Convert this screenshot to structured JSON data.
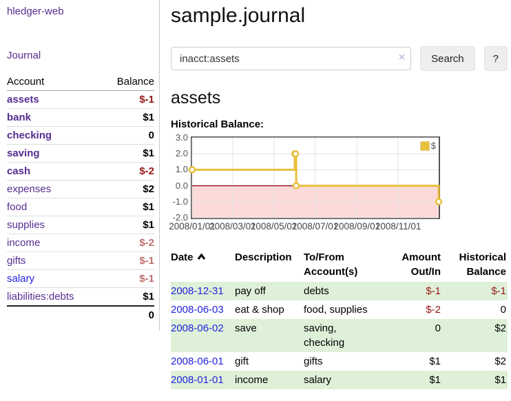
{
  "app": {
    "title": "hledger-web"
  },
  "sidebar": {
    "nav_journal": "Journal",
    "accounts": {
      "col_account": "Account",
      "col_balance": "Balance",
      "rows": [
        {
          "account": "assets",
          "balance": "$-1",
          "depth": 1,
          "bold": true,
          "negative": "strong"
        },
        {
          "account": "bank",
          "balance": "$1",
          "depth": 2,
          "bold": true,
          "negative": "none"
        },
        {
          "account": "checking",
          "balance": "0",
          "depth": 3,
          "bold": true,
          "negative": "none"
        },
        {
          "account": "saving",
          "balance": "$1",
          "depth": 3,
          "bold": true,
          "negative": "none"
        },
        {
          "account": "cash",
          "balance": "$-2",
          "depth": 2,
          "bold": true,
          "negative": "strong"
        },
        {
          "account": "expenses",
          "balance": "$2",
          "depth": 1,
          "bold": false,
          "negative": "none"
        },
        {
          "account": "food",
          "balance": "$1",
          "depth": 2,
          "bold": false,
          "negative": "none"
        },
        {
          "account": "supplies",
          "balance": "$1",
          "depth": 2,
          "bold": false,
          "negative": "none"
        },
        {
          "account": "income",
          "balance": "$-2",
          "depth": 1,
          "bold": false,
          "negative": "soft"
        },
        {
          "account": "gifts",
          "balance": "$-1",
          "depth": 2,
          "bold": false,
          "negative": "soft"
        },
        {
          "account": "salary",
          "balance": "$-1",
          "depth": 2,
          "bold": false,
          "negative": "soft",
          "link_style": "unvisited"
        },
        {
          "account": "liabilities:debts",
          "balance": "$1",
          "depth": 1,
          "bold": false,
          "negative": "none"
        }
      ],
      "total": "0"
    }
  },
  "main": {
    "title": "sample.journal",
    "search": {
      "query": "inacct:assets",
      "clear_icon": "×",
      "button": "Search",
      "help_button": "?"
    },
    "section_title": "assets",
    "chart_label": "Historical Balance:"
  },
  "chart_data": {
    "type": "line",
    "title": "Historical Balance",
    "step": true,
    "series": [
      {
        "name": "$",
        "color": "#e7c03c",
        "points": [
          [
            "2008-01-01",
            1
          ],
          [
            "2008-06-01",
            2
          ],
          [
            "2008-06-02",
            2
          ],
          [
            "2008-06-03",
            0
          ],
          [
            "2008-12-31",
            -1
          ]
        ]
      }
    ],
    "x_range": [
      "2008-01-01",
      "2008-12-31"
    ],
    "ylim": [
      -2,
      3
    ],
    "yticks": [
      "3.0",
      "2.0",
      "1.0",
      "0.0",
      "-1.0",
      "-2.0"
    ],
    "xticks": [
      "2008/01/01",
      "2008/03/01",
      "2008/05/01",
      "2008/07/01",
      "2008/09/01",
      "2008/11/01"
    ],
    "legend": {
      "label": "$",
      "position": "top-right"
    },
    "grid": true,
    "negative_region_color": "#fcdada",
    "zero_line_color": "#8b0000",
    "gridline_color": "#e4e4e4"
  },
  "register": {
    "headers": {
      "date": "Date",
      "description": "Description",
      "accounts": "To/From Account(s)",
      "amount": "Amount Out/In",
      "balance": "Historical Balance"
    },
    "sort_icon": "chevron-up",
    "rows": [
      {
        "date": "2008-12-31",
        "description": "pay off",
        "accounts": "debts",
        "amount": "$-1",
        "balance": "$-1",
        "amount_negative": true,
        "balance_negative": true,
        "highlight": true
      },
      {
        "date": "2008-06-03",
        "description": "eat & shop",
        "accounts": "food, supplies",
        "amount": "$-2",
        "balance": "0",
        "amount_negative": true,
        "balance_negative": false,
        "highlight": false
      },
      {
        "date": "2008-06-02",
        "description": "save",
        "accounts": "saving, checking",
        "amount": "0",
        "balance": "$2",
        "amount_negative": false,
        "balance_negative": false,
        "highlight": true
      },
      {
        "date": "2008-06-01",
        "description": "gift",
        "accounts": "gifts",
        "amount": "$1",
        "balance": "$2",
        "amount_negative": false,
        "balance_negative": false,
        "highlight": false
      },
      {
        "date": "2008-01-01",
        "description": "income",
        "accounts": "salary",
        "amount": "$1",
        "balance": "$1",
        "amount_negative": false,
        "balance_negative": false,
        "highlight": true
      }
    ]
  }
}
